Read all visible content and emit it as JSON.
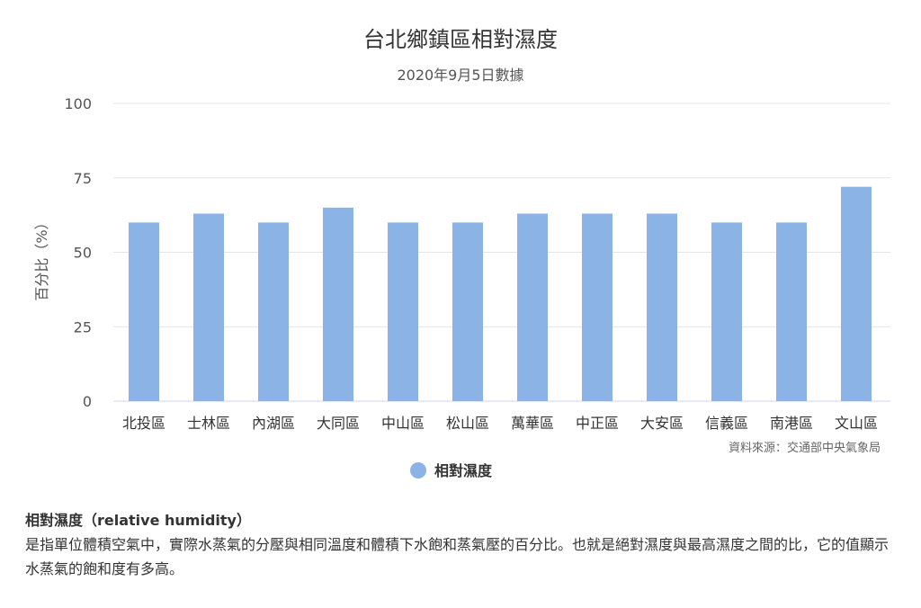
{
  "chart_data": {
    "type": "bar",
    "title": "台北鄉鎮區相對濕度",
    "subtitle": "2020年9月5日數據",
    "ylabel": "百分比（%）",
    "xlabel": "",
    "ylim": [
      0,
      100
    ],
    "yticks": [
      0,
      25,
      50,
      75,
      100
    ],
    "categories": [
      "北投區",
      "士林區",
      "內湖區",
      "大同區",
      "中山區",
      "松山區",
      "萬華區",
      "中正區",
      "大安區",
      "信義區",
      "南港區",
      "文山區"
    ],
    "series": [
      {
        "name": "相對濕度",
        "values": [
          60,
          63,
          60,
          65,
          60,
          60,
          63,
          63,
          63,
          60,
          60,
          72
        ]
      }
    ],
    "grid": true,
    "legend": "bottom-center",
    "source": "資料來源：交通部中央氣象局",
    "colors": {
      "bar": "#8bb3e6",
      "grid": "#e6e6e6",
      "axis": "#ccd6eb"
    }
  },
  "description": {
    "title": "相對濕度（relative humidity）",
    "body": "是指單位體積空氣中，實際水蒸氣的分壓與相同溫度和體積下水飽和蒸氣壓的百分比。也就是絕對濕度與最高濕度之間的比，它的值顯示水蒸氣的飽和度有多高。"
  }
}
